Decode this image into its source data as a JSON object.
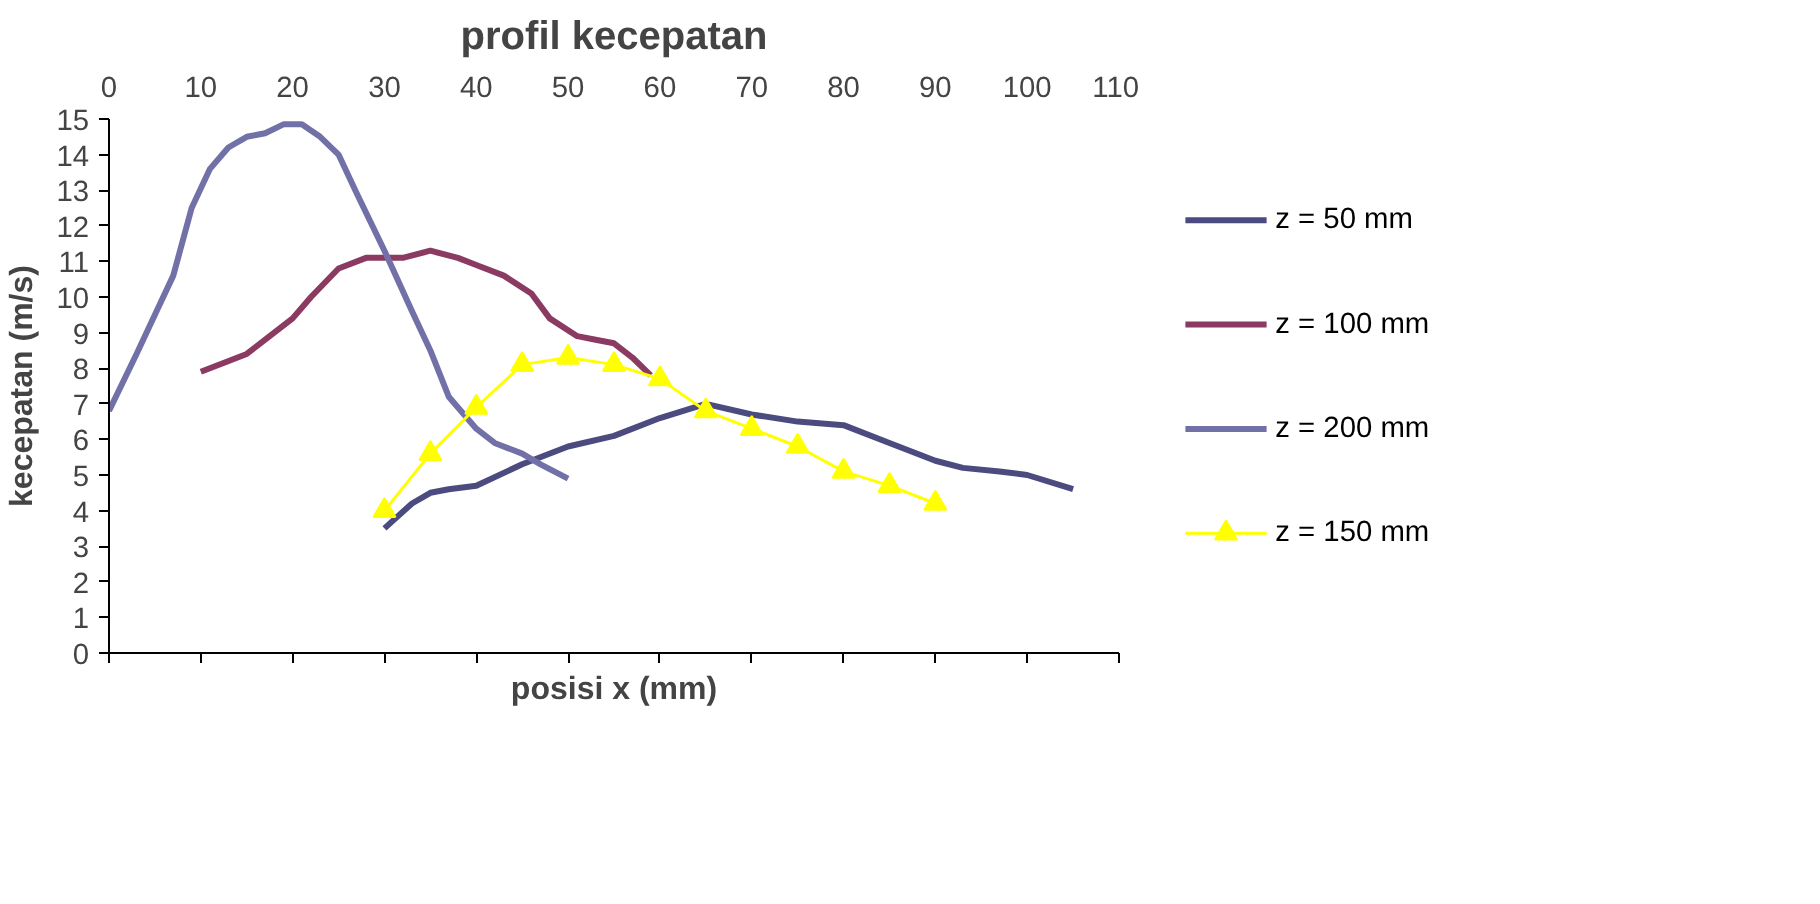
{
  "chart_data": {
    "type": "line",
    "title": "profil kecepatan",
    "xlabel": "posisi x (mm)",
    "ylabel": "kecepatan (m/s)",
    "xlim": [
      0,
      110
    ],
    "xticks": [
      0,
      10,
      20,
      30,
      40,
      50,
      60,
      70,
      80,
      90,
      100,
      110
    ],
    "ylim": [
      0,
      15
    ],
    "yticks": [
      0,
      1,
      2,
      3,
      4,
      5,
      6,
      7,
      8,
      9,
      10,
      11,
      12,
      13,
      14,
      15
    ],
    "grid": false,
    "legend": "right",
    "series": [
      {
        "name": "z = 50 mm",
        "color": "#4b4b80",
        "marker": "none",
        "x": [
          30,
          33,
          35,
          37,
          40,
          45,
          50,
          55,
          60,
          65,
          70,
          75,
          80,
          85,
          90,
          93,
          97,
          100,
          105
        ],
        "values": [
          3.5,
          4.2,
          4.5,
          4.6,
          4.7,
          5.3,
          5.8,
          6.1,
          6.6,
          7.0,
          6.7,
          6.5,
          6.4,
          5.9,
          5.4,
          5.2,
          5.1,
          5.0,
          4.6
        ]
      },
      {
        "name": "z = 100 mm",
        "color": "#8b3a62",
        "marker": "none",
        "x": [
          10,
          15,
          20,
          22,
          25,
          28,
          32,
          35,
          38,
          40,
          43,
          46,
          48,
          51,
          53,
          55,
          57,
          59
        ],
        "values": [
          7.9,
          8.4,
          9.4,
          10.0,
          10.8,
          11.1,
          11.1,
          11.3,
          11.1,
          10.9,
          10.6,
          10.1,
          9.4,
          8.9,
          8.8,
          8.7,
          8.3,
          7.8
        ]
      },
      {
        "name": "z = 200 mm",
        "color": "#7171a8",
        "marker": "none",
        "x": [
          0,
          3,
          5,
          7,
          9,
          11,
          13,
          15,
          17,
          19,
          21,
          23,
          25,
          27,
          30,
          33,
          35,
          37,
          40,
          42,
          45,
          47,
          50
        ],
        "values": [
          6.8,
          8.4,
          9.5,
          10.6,
          12.5,
          13.6,
          14.2,
          14.5,
          14.6,
          14.85,
          14.85,
          14.5,
          14.0,
          12.9,
          11.3,
          9.6,
          8.5,
          7.2,
          6.3,
          5.9,
          5.6,
          5.3,
          4.9
        ]
      },
      {
        "name": "z = 150 mm",
        "color": "#ffff00",
        "marker": "triangle",
        "x": [
          30,
          35,
          40,
          45,
          50,
          55,
          60,
          65,
          70,
          75,
          80,
          85,
          90
        ],
        "values": [
          4.0,
          5.6,
          6.9,
          8.1,
          8.3,
          8.1,
          7.7,
          6.8,
          6.3,
          5.8,
          5.1,
          4.7,
          4.2
        ]
      }
    ]
  }
}
